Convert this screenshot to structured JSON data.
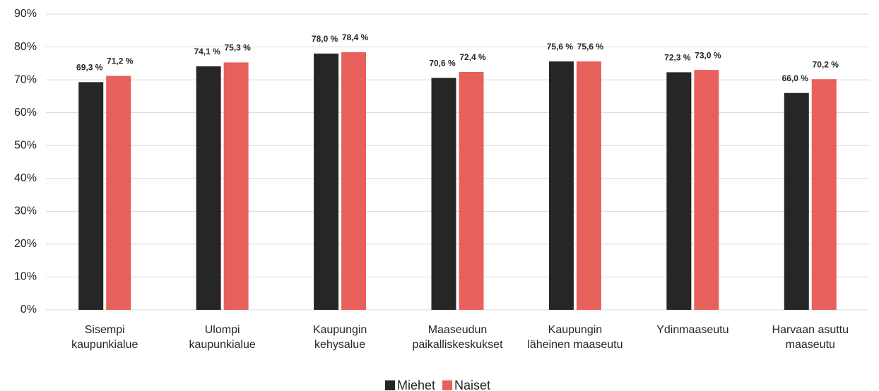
{
  "chart_data": {
    "type": "bar",
    "categories": [
      "Sisempi\nkaupunkialue",
      "Ulompi\nkaupunkialue",
      "Kaupungin\nkehysalue",
      "Maaseudun\npaikalliskeskukset",
      "Kaupungin\nläheinen maaseutu",
      "Ydinmaaseutu",
      "Harvaan asuttu\nmaaseutu"
    ],
    "series": [
      {
        "name": "Miehet",
        "color": "#262626",
        "values": [
          69.3,
          74.1,
          78.0,
          70.6,
          75.6,
          72.3,
          66.0
        ],
        "value_labels": [
          "69,3 %",
          "74,1 %",
          "78,0 %",
          "70,6 %",
          "75,6 %",
          "72,3 %",
          "66,0 %"
        ]
      },
      {
        "name": "Naiset",
        "color": "#e8605c",
        "values": [
          71.2,
          75.3,
          78.4,
          72.4,
          75.6,
          73.0,
          70.2
        ],
        "value_labels": [
          "71,2 %",
          "75,3 %",
          "78,4 %",
          "72,4 %",
          "75,6 %",
          "73,0 %",
          "70,2 %"
        ]
      }
    ],
    "ylim": [
      0,
      90
    ],
    "yticks": [
      {
        "value": 0,
        "label": "0%"
      },
      {
        "value": 10,
        "label": "10%"
      },
      {
        "value": 20,
        "label": "20%"
      },
      {
        "value": 30,
        "label": "30%"
      },
      {
        "value": 40,
        "label": "40%"
      },
      {
        "value": 50,
        "label": "50%"
      },
      {
        "value": 60,
        "label": "60%"
      },
      {
        "value": 70,
        "label": "70%"
      },
      {
        "value": 80,
        "label": "80%"
      },
      {
        "value": 90,
        "label": "90%"
      }
    ],
    "grid": true,
    "legend": "bottom"
  }
}
